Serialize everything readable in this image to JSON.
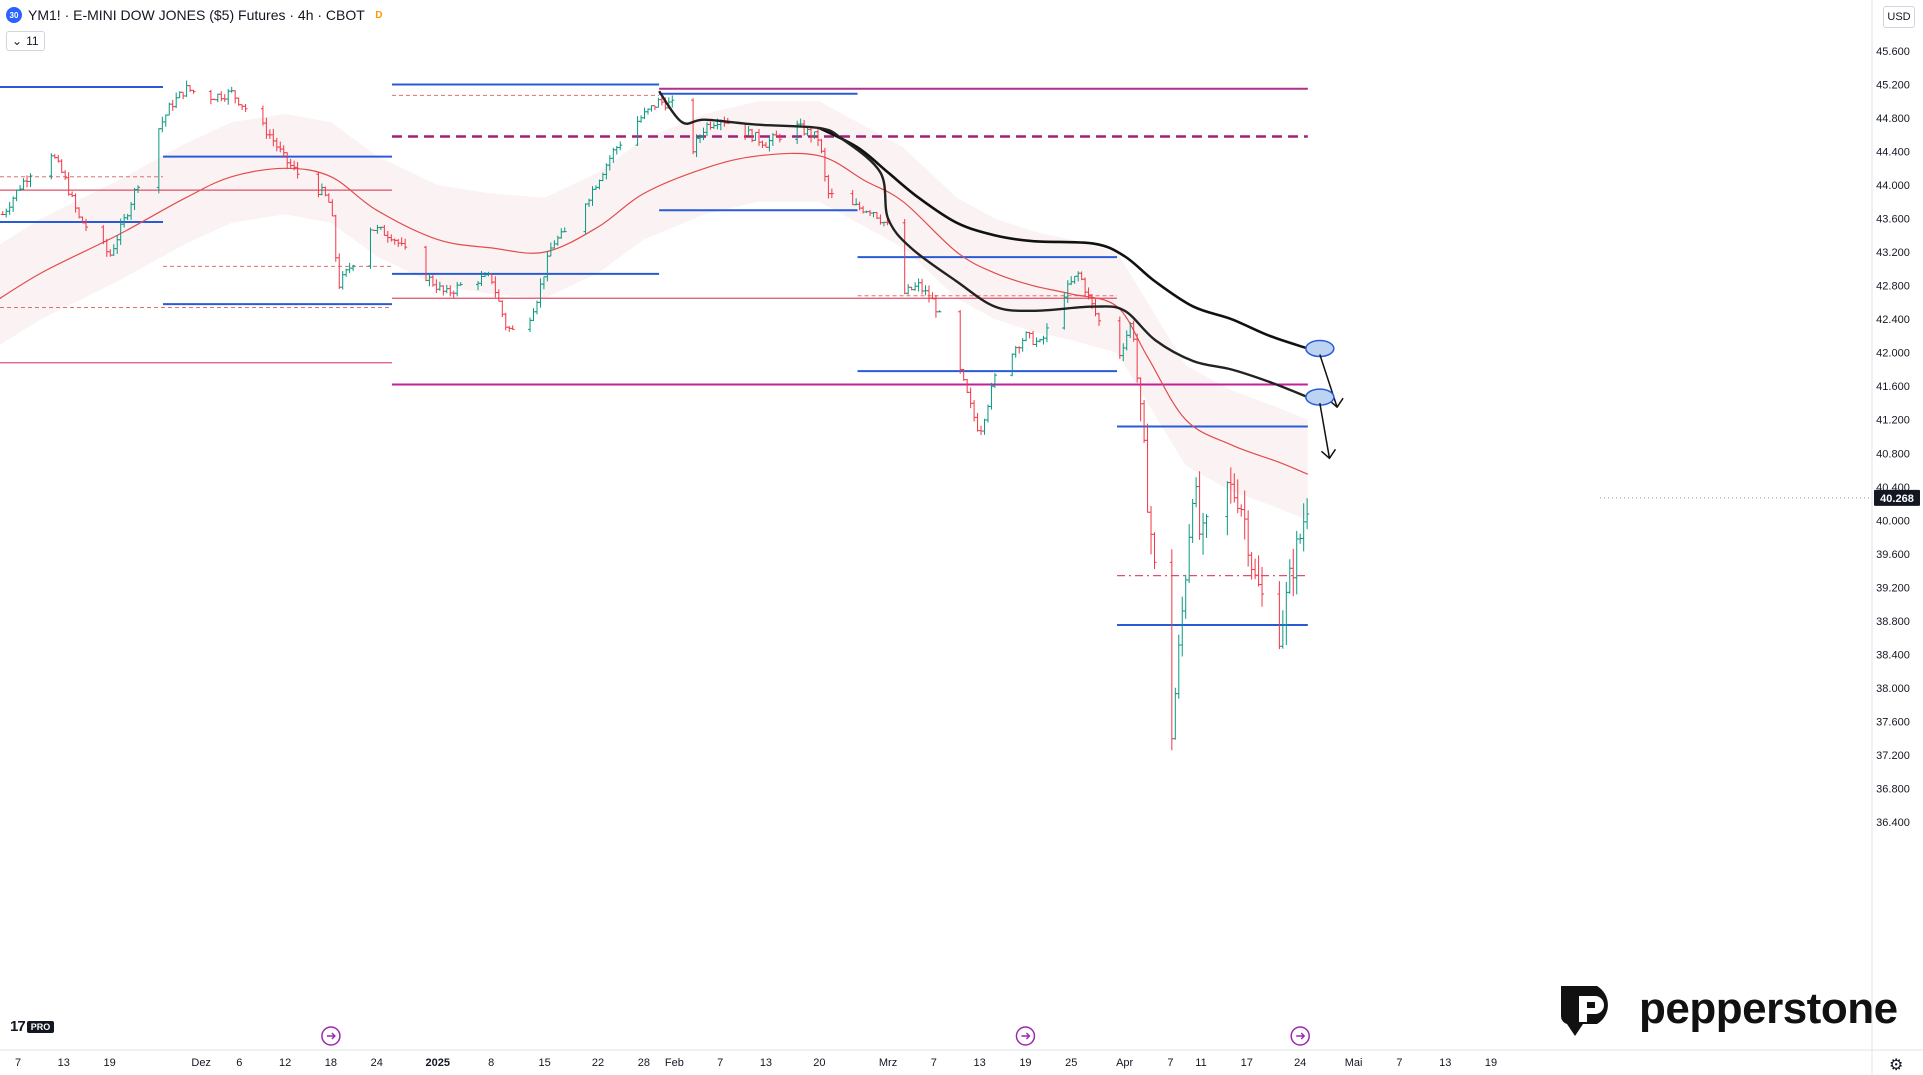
{
  "header": {
    "symbol_badge": "30",
    "title": "YM1! · E-MINI DOW JONES ($5) Futures · 4h · CBOT",
    "data_badge": "D",
    "indicator_count": "11"
  },
  "price_scale": {
    "currency": "USD",
    "last_price_label": "40.268",
    "last_price_color": "#131722"
  },
  "branding": {
    "tv_mark": "17",
    "tv_badge": "PRO",
    "broker": "pepperstone"
  },
  "chart_data": {
    "type": "candlestick",
    "ylim": [
      36200,
      45800
    ],
    "y_ticks": [
      {
        "value": 45600,
        "label": "45.600"
      },
      {
        "value": 45200,
        "label": "45.200"
      },
      {
        "value": 44800,
        "label": "44.800"
      },
      {
        "value": 44400,
        "label": "44.400"
      },
      {
        "value": 44000,
        "label": "44.000"
      },
      {
        "value": 43600,
        "label": "43.600"
      },
      {
        "value": 43200,
        "label": "43.200"
      },
      {
        "value": 42800,
        "label": "42.800"
      },
      {
        "value": 42400,
        "label": "42.400"
      },
      {
        "value": 42000,
        "label": "42.000"
      },
      {
        "value": 41600,
        "label": "41.600"
      },
      {
        "value": 41200,
        "label": "41.200"
      },
      {
        "value": 40800,
        "label": "40.800"
      },
      {
        "value": 40400,
        "label": "40.400"
      },
      {
        "value": 40000,
        "label": "40.000"
      },
      {
        "value": 39600,
        "label": "39.600"
      },
      {
        "value": 39200,
        "label": "39.200"
      },
      {
        "value": 38800,
        "label": "38.800"
      },
      {
        "value": 38400,
        "label": "38.400"
      },
      {
        "value": 38000,
        "label": "38.000"
      },
      {
        "value": 37600,
        "label": "37.600"
      },
      {
        "value": 37200,
        "label": "37.200"
      },
      {
        "value": 36800,
        "label": "36.800"
      },
      {
        "value": 36400,
        "label": "36.400"
      }
    ],
    "x_ticks": [
      {
        "d": "2024-11-07",
        "label": "7",
        "bold": false
      },
      {
        "d": "2024-11-13",
        "label": "13",
        "bold": false
      },
      {
        "d": "2024-11-19",
        "label": "19",
        "bold": false
      },
      {
        "d": "2024-12-01",
        "label": "Dez",
        "bold": false
      },
      {
        "d": "2024-12-06",
        "label": "6",
        "bold": false
      },
      {
        "d": "2024-12-12",
        "label": "12",
        "bold": false
      },
      {
        "d": "2024-12-18",
        "label": "18",
        "bold": false
      },
      {
        "d": "2024-12-24",
        "label": "24",
        "bold": false
      },
      {
        "d": "2025-01-01",
        "label": "2025",
        "bold": true
      },
      {
        "d": "2025-01-08",
        "label": "8",
        "bold": false
      },
      {
        "d": "2025-01-15",
        "label": "15",
        "bold": false
      },
      {
        "d": "2025-01-22",
        "label": "22",
        "bold": false
      },
      {
        "d": "2025-01-28",
        "label": "28",
        "bold": false
      },
      {
        "d": "2025-02-01",
        "label": "Feb",
        "bold": false
      },
      {
        "d": "2025-02-07",
        "label": "7",
        "bold": false
      },
      {
        "d": "2025-02-13",
        "label": "13",
        "bold": false
      },
      {
        "d": "2025-02-20",
        "label": "20",
        "bold": false
      },
      {
        "d": "2025-03-01",
        "label": "Mrz",
        "bold": false
      },
      {
        "d": "2025-03-07",
        "label": "7",
        "bold": false
      },
      {
        "d": "2025-03-13",
        "label": "13",
        "bold": false
      },
      {
        "d": "2025-03-19",
        "label": "19",
        "bold": false
      },
      {
        "d": "2025-03-25",
        "label": "25",
        "bold": false
      },
      {
        "d": "2025-04-01",
        "label": "Apr",
        "bold": false
      },
      {
        "d": "2025-04-07",
        "label": "7",
        "bold": false
      },
      {
        "d": "2025-04-11",
        "label": "11",
        "bold": false
      },
      {
        "d": "2025-04-17",
        "label": "17",
        "bold": false
      },
      {
        "d": "2025-04-24",
        "label": "24",
        "bold": false
      },
      {
        "d": "2025-05-01",
        "label": "Mai",
        "bold": false
      },
      {
        "d": "2025-05-07",
        "label": "7",
        "bold": false
      },
      {
        "d": "2025-05-13",
        "label": "13",
        "bold": false
      },
      {
        "d": "2025-05-19",
        "label": "19",
        "bold": false
      }
    ],
    "event_markers": [
      "2024-12-18",
      "2025-03-19",
      "2025-04-24"
    ],
    "candle_path": [
      [
        "2024-11-05",
        43650
      ],
      [
        "2024-11-07",
        43950
      ],
      [
        "2024-11-11",
        44450
      ],
      [
        "2024-11-13",
        44100
      ],
      [
        "2024-11-15",
        43600
      ],
      [
        "2024-11-18",
        43300
      ],
      [
        "2024-11-19",
        43150
      ],
      [
        "2024-11-21",
        43600
      ],
      [
        "2024-11-25",
        44600
      ],
      [
        "2024-11-27",
        44950
      ],
      [
        "2024-11-29",
        45150
      ],
      [
        "2024-12-02",
        45050
      ],
      [
        "2024-12-05",
        45100
      ],
      [
        "2024-12-07",
        44900
      ],
      [
        "2024-12-10",
        44600
      ],
      [
        "2024-12-12",
        44300
      ],
      [
        "2024-12-14",
        44100
      ],
      [
        "2024-12-17",
        43900
      ],
      [
        "2024-12-18",
        43750
      ],
      [
        "2024-12-19",
        42800
      ],
      [
        "2024-12-21",
        43100
      ],
      [
        "2024-12-23",
        43500
      ],
      [
        "2024-12-26",
        43400
      ],
      [
        "2024-12-30",
        42950
      ],
      [
        "2025-01-02",
        42700
      ],
      [
        "2025-01-05",
        42850
      ],
      [
        "2025-01-08",
        42900
      ],
      [
        "2025-01-10",
        42300
      ],
      [
        "2025-01-12",
        42200
      ],
      [
        "2025-01-14",
        42650
      ],
      [
        "2025-01-16",
        43300
      ],
      [
        "2025-01-18",
        43450
      ],
      [
        "2025-01-21",
        43900
      ],
      [
        "2025-01-24",
        44400
      ],
      [
        "2025-01-27",
        44750
      ],
      [
        "2025-01-30",
        45000
      ],
      [
        "2025-02-01",
        44950
      ],
      [
        "2025-02-03",
        44350
      ],
      [
        "2025-02-05",
        44700
      ],
      [
        "2025-02-07",
        44800
      ],
      [
        "2025-02-10",
        44650
      ],
      [
        "2025-02-13",
        44500
      ],
      [
        "2025-02-17",
        44700
      ],
      [
        "2025-02-20",
        44550
      ],
      [
        "2025-02-21",
        43900
      ],
      [
        "2025-02-24",
        43750
      ],
      [
        "2025-02-27",
        43700
      ],
      [
        "2025-03-01",
        43500
      ],
      [
        "2025-03-03",
        42700
      ],
      [
        "2025-03-05",
        42800
      ],
      [
        "2025-03-07",
        42600
      ],
      [
        "2025-03-10",
        41900
      ],
      [
        "2025-03-12",
        41300
      ],
      [
        "2025-03-13",
        41050
      ],
      [
        "2025-03-15",
        41700
      ],
      [
        "2025-03-17",
        42000
      ],
      [
        "2025-03-19",
        42200
      ],
      [
        "2025-03-21",
        42100
      ],
      [
        "2025-03-24",
        42700
      ],
      [
        "2025-03-26",
        42950
      ],
      [
        "2025-03-28",
        42500
      ],
      [
        "2025-03-31",
        41900
      ],
      [
        "2025-04-02",
        42400
      ],
      [
        "2025-04-03",
        41300
      ],
      [
        "2025-04-05",
        39300
      ],
      [
        "2025-04-06",
        37700
      ],
      [
        "2025-04-07",
        37300
      ],
      [
        "2025-04-08",
        38300
      ],
      [
        "2025-04-09",
        39400
      ],
      [
        "2025-04-10",
        40500
      ],
      [
        "2025-04-11",
        39700
      ],
      [
        "2025-04-14",
        40400
      ],
      [
        "2025-04-16",
        40300
      ],
      [
        "2025-04-17",
        39900
      ],
      [
        "2025-04-18",
        39300
      ],
      [
        "2025-04-21",
        38600
      ],
      [
        "2025-04-22",
        38950
      ],
      [
        "2025-04-23",
        39450
      ],
      [
        "2025-04-24",
        39800
      ],
      [
        "2025-04-25",
        40268
      ]
    ],
    "horizontal_levels": [
      {
        "d1": "2024-11-03",
        "d2": "2024-11-26",
        "v": 45170,
        "color": "#2a5bd7",
        "w": 2,
        "dash": ""
      },
      {
        "d1": "2024-11-26",
        "d2": "2024-12-26",
        "v": 44340,
        "color": "#2a5bd7",
        "w": 2,
        "dash": ""
      },
      {
        "d1": "2024-11-03",
        "d2": "2024-11-26",
        "v": 43560,
        "color": "#2a5bd7",
        "w": 2,
        "dash": ""
      },
      {
        "d1": "2024-11-26",
        "d2": "2024-12-26",
        "v": 42580,
        "color": "#2a5bd7",
        "w": 2,
        "dash": ""
      },
      {
        "d1": "2024-11-03",
        "d2": "2024-12-26",
        "v": 43940,
        "color": "#e0506a",
        "w": 1.3,
        "dash": ""
      },
      {
        "d1": "2024-11-03",
        "d2": "2024-12-26",
        "v": 41880,
        "color": "#e05080",
        "w": 1.3,
        "dash": ""
      },
      {
        "d1": "2024-11-03",
        "d2": "2024-11-26",
        "v": 44100,
        "color": "#e07070",
        "w": 1,
        "dash": "4,3"
      },
      {
        "d1": "2024-11-26",
        "d2": "2024-12-26",
        "v": 43030,
        "color": "#e07070",
        "w": 1,
        "dash": "4,3"
      },
      {
        "d1": "2024-11-03",
        "d2": "2024-12-26",
        "v": 42540,
        "color": "#e07070",
        "w": 1,
        "dash": "4,3"
      },
      {
        "d1": "2024-12-26",
        "d2": "2025-01-30",
        "v": 45200,
        "color": "#2a5bd7",
        "w": 2,
        "dash": ""
      },
      {
        "d1": "2024-12-26",
        "d2": "2025-01-30",
        "v": 45070,
        "color": "#e07070",
        "w": 1,
        "dash": "4,3"
      },
      {
        "d1": "2024-12-26",
        "d2": "2025-01-30",
        "v": 42940,
        "color": "#2a5bd7",
        "w": 2,
        "dash": ""
      },
      {
        "d1": "2024-12-26",
        "d2": "2025-03-31",
        "v": 42650,
        "color": "#e0506a",
        "w": 1.3,
        "dash": ""
      },
      {
        "d1": "2024-12-26",
        "d2": "2025-04-25",
        "v": 44580,
        "color": "#a0207a",
        "w": 2.5,
        "dash": "10,6"
      },
      {
        "d1": "2025-01-30",
        "d2": "2025-04-25",
        "v": 45150,
        "color": "#b0308a",
        "w": 2,
        "dash": ""
      },
      {
        "d1": "2025-01-30",
        "d2": "2025-02-25",
        "v": 45090,
        "color": "#2a5bd7",
        "w": 2,
        "dash": ""
      },
      {
        "d1": "2025-01-30",
        "d2": "2025-02-25",
        "v": 43700,
        "color": "#2a5bd7",
        "w": 2,
        "dash": ""
      },
      {
        "d1": "2024-12-26",
        "d2": "2025-04-25",
        "v": 41620,
        "color": "#c0209a",
        "w": 2,
        "dash": ""
      },
      {
        "d1": "2025-02-25",
        "d2": "2025-03-31",
        "v": 43140,
        "color": "#2a5bd7",
        "w": 2,
        "dash": ""
      },
      {
        "d1": "2025-02-25",
        "d2": "2025-03-31",
        "v": 41780,
        "color": "#2a5bd7",
        "w": 2,
        "dash": ""
      },
      {
        "d1": "2025-02-25",
        "d2": "2025-03-31",
        "v": 42680,
        "color": "#e07070",
        "w": 1,
        "dash": "4,3"
      },
      {
        "d1": "2025-03-31",
        "d2": "2025-04-25",
        "v": 41120,
        "color": "#2a5bd7",
        "w": 2,
        "dash": ""
      },
      {
        "d1": "2025-03-31",
        "d2": "2025-04-25",
        "v": 39340,
        "color": "#e0506a",
        "w": 1.3,
        "dash": "8,4,2,4"
      },
      {
        "d1": "2025-03-31",
        "d2": "2025-04-25",
        "v": 38750,
        "color": "#2a5bd7",
        "w": 2,
        "dash": ""
      }
    ],
    "red_ma": [
      [
        "2024-11-03",
        42550
      ],
      [
        "2024-11-10",
        42950
      ],
      [
        "2024-11-20",
        43400
      ],
      [
        "2024-11-29",
        43850
      ],
      [
        "2024-12-05",
        44100
      ],
      [
        "2024-12-12",
        44200
      ],
      [
        "2024-12-18",
        44100
      ],
      [
        "2024-12-24",
        43700
      ],
      [
        "2025-01-01",
        43350
      ],
      [
        "2025-01-08",
        43250
      ],
      [
        "2025-01-15",
        43200
      ],
      [
        "2025-01-22",
        43500
      ],
      [
        "2025-01-28",
        43900
      ],
      [
        "2025-02-05",
        44200
      ],
      [
        "2025-02-12",
        44350
      ],
      [
        "2025-02-20",
        44350
      ],
      [
        "2025-02-26",
        44050
      ],
      [
        "2025-03-03",
        43800
      ],
      [
        "2025-03-10",
        43200
      ],
      [
        "2025-03-15",
        42950
      ],
      [
        "2025-03-20",
        42800
      ],
      [
        "2025-03-25",
        42700
      ],
      [
        "2025-03-31",
        42550
      ],
      [
        "2025-04-04",
        41950
      ],
      [
        "2025-04-09",
        41200
      ],
      [
        "2025-04-15",
        40900
      ],
      [
        "2025-04-21",
        40700
      ],
      [
        "2025-04-25",
        40550
      ]
    ],
    "black_ma_slow": [
      [
        "2025-02-20",
        44680
      ],
      [
        "2025-02-25",
        44450
      ],
      [
        "2025-03-01",
        44150
      ],
      [
        "2025-03-05",
        43850
      ],
      [
        "2025-03-10",
        43550
      ],
      [
        "2025-03-15",
        43400
      ],
      [
        "2025-03-20",
        43330
      ],
      [
        "2025-03-28",
        43300
      ],
      [
        "2025-04-01",
        43150
      ],
      [
        "2025-04-05",
        42850
      ],
      [
        "2025-04-10",
        42550
      ],
      [
        "2025-04-15",
        42400
      ],
      [
        "2025-04-20",
        42200
      ],
      [
        "2025-04-25",
        42050
      ]
    ],
    "black_ma_fast": [
      [
        "2025-01-30",
        45120
      ],
      [
        "2025-02-02",
        44750
      ],
      [
        "2025-02-05",
        44780
      ],
      [
        "2025-02-12",
        44720
      ],
      [
        "2025-02-20",
        44680
      ],
      [
        "2025-02-23",
        44550
      ],
      [
        "2025-02-28",
        44150
      ],
      [
        "2025-03-01",
        43600
      ],
      [
        "2025-03-04",
        43250
      ],
      [
        "2025-03-10",
        42850
      ],
      [
        "2025-03-15",
        42550
      ],
      [
        "2025-03-20",
        42500
      ],
      [
        "2025-03-28",
        42550
      ],
      [
        "2025-04-01",
        42500
      ],
      [
        "2025-04-05",
        42150
      ],
      [
        "2025-04-10",
        41900
      ],
      [
        "2025-04-15",
        41800
      ],
      [
        "2025-04-20",
        41650
      ],
      [
        "2025-04-25",
        41470
      ]
    ],
    "trend_projections": [
      {
        "from": [
          "2025-04-25",
          42050
        ],
        "to": [
          "2025-04-27",
          41350
        ]
      },
      {
        "from": [
          "2025-04-25",
          41470
        ],
        "to": [
          "2025-04-26",
          40740
        ]
      }
    ],
    "last_price": 40268
  }
}
